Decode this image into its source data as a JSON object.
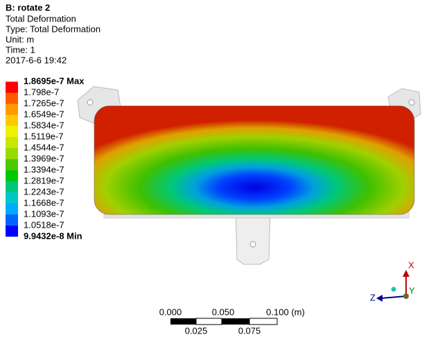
{
  "header": {
    "title": "B: rotate 2",
    "lines": [
      "Total Deformation",
      "Type: Total Deformation",
      "Unit: m",
      "Time: 1",
      "2017-6-6 19:42"
    ]
  },
  "legend": {
    "labels": [
      "1.8695e-7 Max",
      "1.798e-7",
      "1.7265e-7",
      "1.6549e-7",
      "1.5834e-7",
      "1.5119e-7",
      "1.4544e-7",
      "1.3969e-7",
      "1.3394e-7",
      "1.2819e-7",
      "1.2243e-7",
      "1.1668e-7",
      "1.1093e-7",
      "1.0518e-7",
      "9.9432e-8 Min"
    ],
    "colors": [
      "#ff0000",
      "#ff5a00",
      "#ff9a00",
      "#ffc800",
      "#f0f000",
      "#c8e600",
      "#96dc00",
      "#50c800",
      "#00c800",
      "#00c878",
      "#00c8c8",
      "#00aaff",
      "#0064ff",
      "#0000ff"
    ]
  },
  "scale_bar": {
    "top_labels": [
      "0.000",
      "0.050",
      "0.100 (m)"
    ],
    "bottom_labels": [
      "0.025",
      "0.075"
    ]
  },
  "triad": {
    "x": "X",
    "y": "Y",
    "z": "Z"
  }
}
